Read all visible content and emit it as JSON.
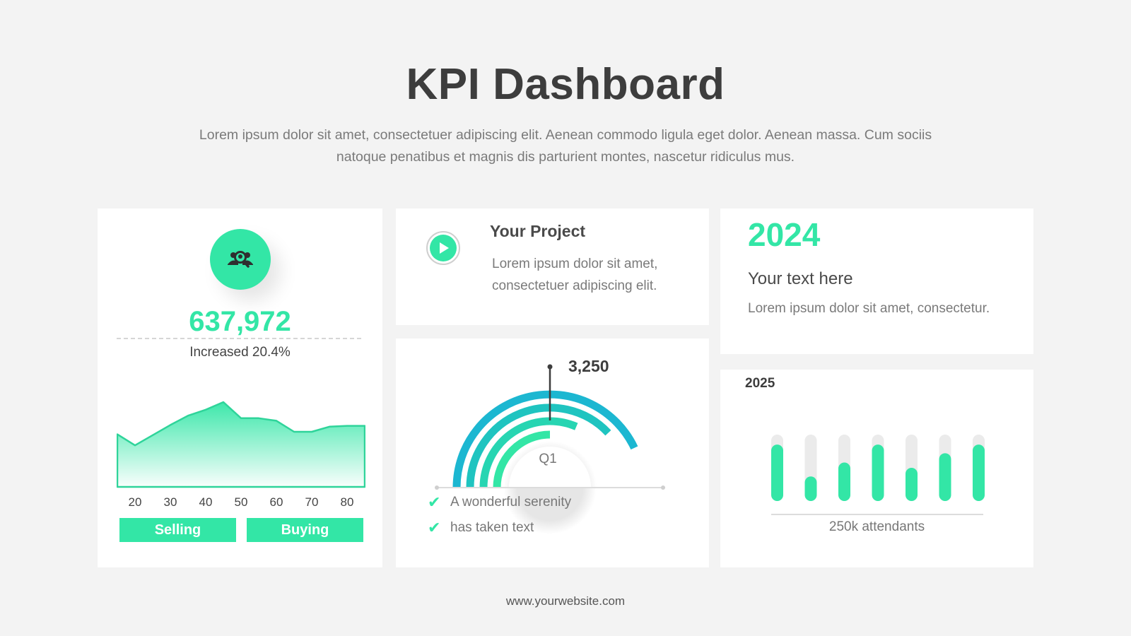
{
  "header": {
    "title": "KPI Dashboard",
    "subtitle": "Lorem ipsum dolor sit amet, consectetuer adipiscing elit. Aenean commodo ligula eget dolor. Aenean massa. Cum sociis natoque penatibus et magnis dis parturient montes, nascetur ridiculus mus."
  },
  "colors": {
    "accent": "#33e6a6",
    "accent_blue": "#1cb7d1",
    "track": "#ebebeb",
    "text_dark": "#3d3d3d",
    "text_muted": "#7a7a7a"
  },
  "stats_card": {
    "icon": "team-search-icon",
    "value": "637,972",
    "change": "Increased 20.4%",
    "buttons": {
      "selling": "Selling",
      "buying": "Buying"
    }
  },
  "project_card": {
    "icon": "play-icon",
    "title": "Your Project",
    "text": "Lorem ipsum dolor sit amet, consectetuer adipiscing elit."
  },
  "gauge_card": {
    "value_label": "3,250",
    "center_label": "Q1",
    "checklist": [
      "A wonderful serenity",
      "has taken text"
    ]
  },
  "year_card": {
    "year": "2024",
    "heading": "Your text here",
    "text": "Lorem ipsum dolor sit amet, consectetur."
  },
  "bars_card": {
    "year": "2025",
    "caption": "250k attendants"
  },
  "footer": {
    "website": "www.yourwebsite.com"
  },
  "chart_data": [
    {
      "type": "area",
      "x": [
        15,
        20,
        30,
        35,
        40,
        45,
        50,
        55,
        60,
        65,
        70,
        75,
        80,
        85
      ],
      "values": [
        62,
        49,
        73,
        84,
        91,
        100,
        81,
        81,
        78,
        65,
        65,
        71,
        72,
        72
      ],
      "xticks": [
        "20",
        "30",
        "40",
        "50",
        "60",
        "70",
        "80"
      ],
      "ylim": [
        0,
        115
      ]
    },
    {
      "type": "gauge",
      "rings": [
        {
          "name": "",
          "fraction": 0.86,
          "color": "#1cb7d1"
        },
        {
          "name": "",
          "fraction": 0.76,
          "color": "#1fc4c0"
        },
        {
          "name": "",
          "fraction": 0.63,
          "color": "#27d5b2"
        },
        {
          "name": "",
          "fraction": 0.5,
          "color": "#33e6a6"
        }
      ],
      "value_label": "3,250",
      "center_label": "Q1"
    },
    {
      "type": "bar",
      "values": [
        0.85,
        0.37,
        0.58,
        0.85,
        0.5,
        0.72,
        0.85
      ],
      "ylim": [
        0,
        1
      ]
    }
  ]
}
